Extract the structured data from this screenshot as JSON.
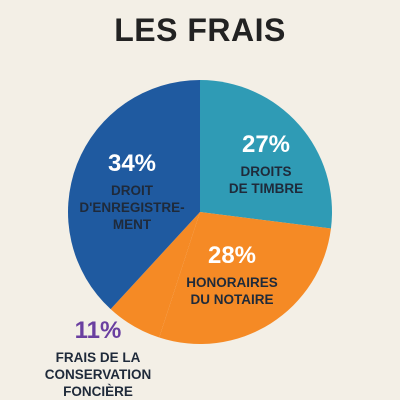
{
  "chart_data": {
    "type": "pie",
    "title": "LES FRAIS",
    "slices": [
      {
        "label_lines": [
          "DROITS",
          "DE TIMBRE"
        ],
        "value": 27,
        "percent_label": "27%",
        "color": "#2f9bb5",
        "text_color": "#1f2a3a",
        "pct_color": "#ffffff"
      },
      {
        "label_lines": [
          "HONORAIRES",
          "DU NOTAIRE"
        ],
        "value": 28,
        "percent_label": "28%",
        "color": "#f58a25",
        "text_color": "#1f2a3a",
        "pct_color": "#ffffff"
      },
      {
        "label_lines": [
          "FRAIS DE LA",
          "CONSERVATION",
          "FONCIÈRE"
        ],
        "value": 11,
        "percent_label": "11%",
        "color": "#f58a25",
        "text_color": "#1f2a3a",
        "pct_color": "#6a3fa0"
      },
      {
        "label_lines": [
          "DROIT",
          "D'ENREGISTRE-",
          "MENT"
        ],
        "value": 34,
        "percent_label": "34%",
        "color": "#1f5aa0",
        "text_color": "#1f2a3a",
        "pct_color": "#ffffff"
      }
    ]
  }
}
